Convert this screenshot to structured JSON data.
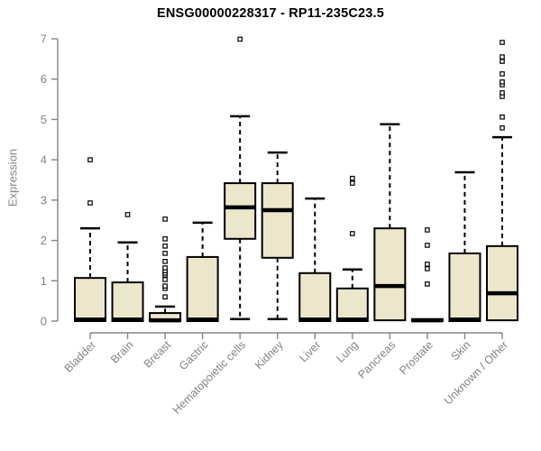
{
  "chart_data": {
    "type": "boxplot",
    "title": "ENSG00000228317 - RP11-235C23.5",
    "ylabel": "Expression",
    "xlabel": "",
    "ylim": [
      0,
      7
    ],
    "yticks": [
      0,
      1,
      2,
      3,
      4,
      5,
      6,
      7
    ],
    "grid": false,
    "legend": "none",
    "categories": [
      "Bladder",
      "Brain",
      "Breast",
      "Gastric",
      "Hematopoietic cells",
      "Kidney",
      "Liver",
      "Lung",
      "Pancreas",
      "Prostate",
      "Skin",
      "Unknown / Other"
    ],
    "series": [
      {
        "category": "Bladder",
        "whisker_low": 0,
        "q1": 0,
        "median": 0.04,
        "q3": 1.07,
        "whisker_high": 2.3,
        "outliers": [
          2.93,
          4.0
        ]
      },
      {
        "category": "Brain",
        "whisker_low": 0,
        "q1": 0,
        "median": 0.04,
        "q3": 0.96,
        "whisker_high": 1.95,
        "outliers": [
          2.64
        ]
      },
      {
        "category": "Breast",
        "whisker_low": 0,
        "q1": 0,
        "median": 0.02,
        "q3": 0.2,
        "whisker_high": 0.36,
        "outliers": [
          0.6,
          0.81,
          0.87,
          1.03,
          1.14,
          1.19,
          1.25,
          1.32,
          1.48,
          1.68,
          1.86,
          2.04,
          2.53
        ]
      },
      {
        "category": "Gastric",
        "whisker_low": 0,
        "q1": 0,
        "median": 0.04,
        "q3": 1.59,
        "whisker_high": 2.44,
        "outliers": []
      },
      {
        "category": "Hematopoietic cells",
        "whisker_low": 0.05,
        "q1": 2.04,
        "median": 2.82,
        "q3": 3.42,
        "whisker_high": 5.08,
        "outliers": [
          6.99
        ]
      },
      {
        "category": "Kidney",
        "whisker_low": 0.05,
        "q1": 1.57,
        "median": 2.75,
        "q3": 3.42,
        "whisker_high": 4.18,
        "outliers": []
      },
      {
        "category": "Liver",
        "whisker_low": 0,
        "q1": 0,
        "median": 0.04,
        "q3": 1.19,
        "whisker_high": 3.04,
        "outliers": []
      },
      {
        "category": "Lung",
        "whisker_low": 0,
        "q1": 0,
        "median": 0.04,
        "q3": 0.81,
        "whisker_high": 1.28,
        "outliers": [
          2.17,
          3.42,
          3.54
        ]
      },
      {
        "category": "Pancreas",
        "whisker_low": 0.02,
        "q1": 0.02,
        "median": 0.87,
        "q3": 2.3,
        "whisker_high": 4.88,
        "outliers": []
      },
      {
        "category": "Prostate",
        "whisker_low": 0,
        "q1": 0,
        "median": 0.02,
        "q3": 0.05,
        "whisker_high": 0.05,
        "outliers": [
          0.92,
          1.3,
          1.41,
          1.88,
          2.26
        ]
      },
      {
        "category": "Skin",
        "whisker_low": 0,
        "q1": 0,
        "median": 0.04,
        "q3": 1.68,
        "whisker_high": 3.69,
        "outliers": []
      },
      {
        "category": "Unknown / Other",
        "whisker_low": 0.02,
        "q1": 0.02,
        "median": 0.69,
        "q3": 1.86,
        "whisker_high": 4.56,
        "outliers": [
          4.79,
          5.06,
          5.57,
          5.66,
          5.86,
          5.93,
          6.13,
          6.44,
          6.55,
          6.91
        ]
      }
    ],
    "colors": {
      "box_fill": "#ECE7CB",
      "box_stroke": "#000000",
      "median": "#000000",
      "whisker": "#000000",
      "outlier_stroke": "#000000",
      "outlier_fill": "#ffffff",
      "axis": "#858585",
      "tick_text": "#848484",
      "title_text": "#000000"
    }
  }
}
